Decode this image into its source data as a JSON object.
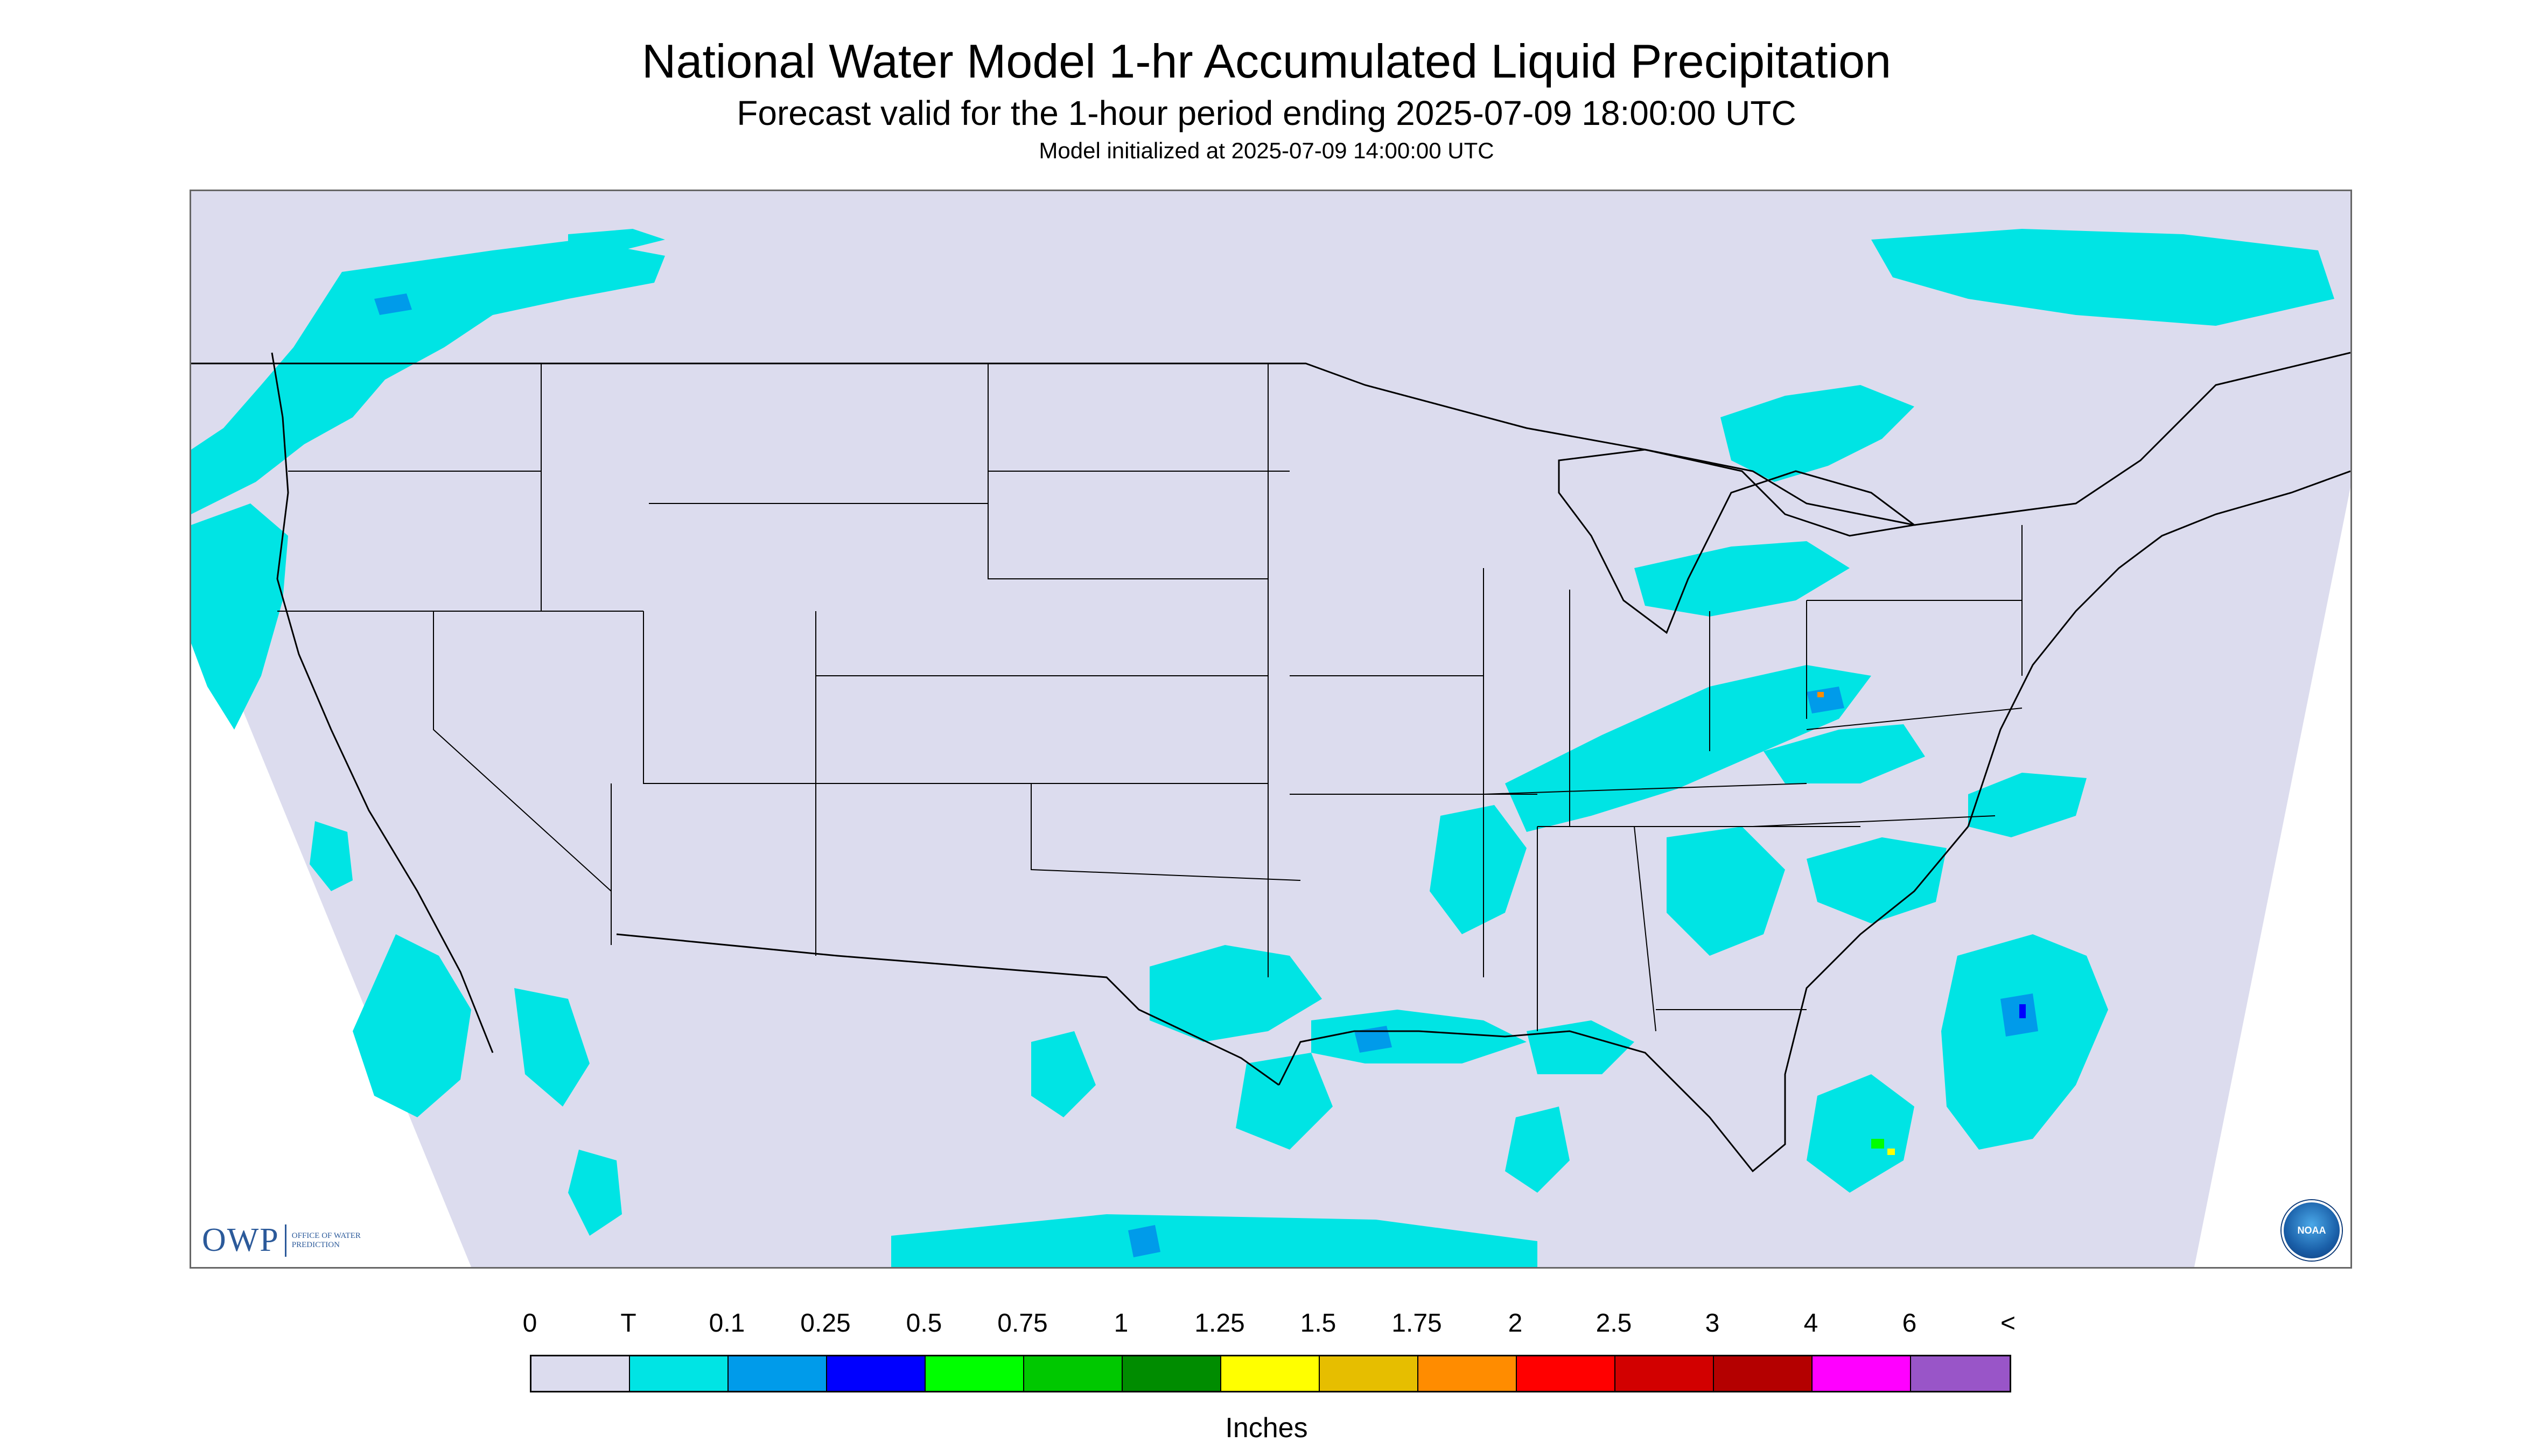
{
  "title": "National Water Model 1-hr Accumulated Liquid Precipitation",
  "subtitle": "Forecast valid for the 1-hour period ending 2025-07-09 18:00:00 UTC",
  "model_init": "Model initialized at 2025-07-09 14:00:00 UTC",
  "map": {
    "region": "CONUS",
    "domain_fill_color": "#dcdcee",
    "outside_domain_color": "#ffffff",
    "boundary_color": "#000000",
    "precip_areas": [
      {
        "region": "Pacific Northwest / British Columbia",
        "level": "T",
        "color": "#00e4e4"
      },
      {
        "region": "Pacific coast of Oregon and California",
        "level": "T",
        "color": "#00e4e4"
      },
      {
        "region": "Gulf of California and Baja",
        "level": "T",
        "color": "#00e4e4"
      },
      {
        "region": "Southern Ontario / Quebec",
        "level": "T",
        "color": "#00e4e4"
      },
      {
        "region": "Northern Quebec / Labrador",
        "level": "T",
        "color": "#00e4e4"
      },
      {
        "region": "Ohio Valley to Mid-Atlantic band",
        "level": "0.1",
        "color": "#009bea"
      },
      {
        "region": "Gulf Coast (Texas to Florida Panhandle)",
        "level": "0.1",
        "color": "#009bea"
      },
      {
        "region": "Southeast / Carolinas",
        "level": "T",
        "color": "#00e4e4"
      },
      {
        "region": "Western Atlantic off Florida",
        "level": "0.5",
        "color": "#00ff00"
      },
      {
        "region": "Gulf of Mexico / Central America",
        "level": "T",
        "color": "#00e4e4"
      }
    ]
  },
  "logos": {
    "owp_text": "OWP",
    "owp_subtext": "OFFICE OF WATER PREDICTION",
    "noaa_text": "NOAA"
  },
  "legend": {
    "labels": [
      "0",
      "T",
      "0.1",
      "0.25",
      "0.5",
      "0.75",
      "1",
      "1.25",
      "1.5",
      "1.75",
      "2",
      "2.5",
      "3",
      "4",
      "6",
      "<"
    ],
    "colors": [
      "#dcdcee",
      "#00e4e4",
      "#009bea",
      "#0000ff",
      "#00ff00",
      "#00c800",
      "#008c00",
      "#ffff00",
      "#e6be00",
      "#ff8c00",
      "#ff0000",
      "#d20000",
      "#b40000",
      "#ff00ff",
      "#9955c8"
    ],
    "units": "Inches"
  }
}
